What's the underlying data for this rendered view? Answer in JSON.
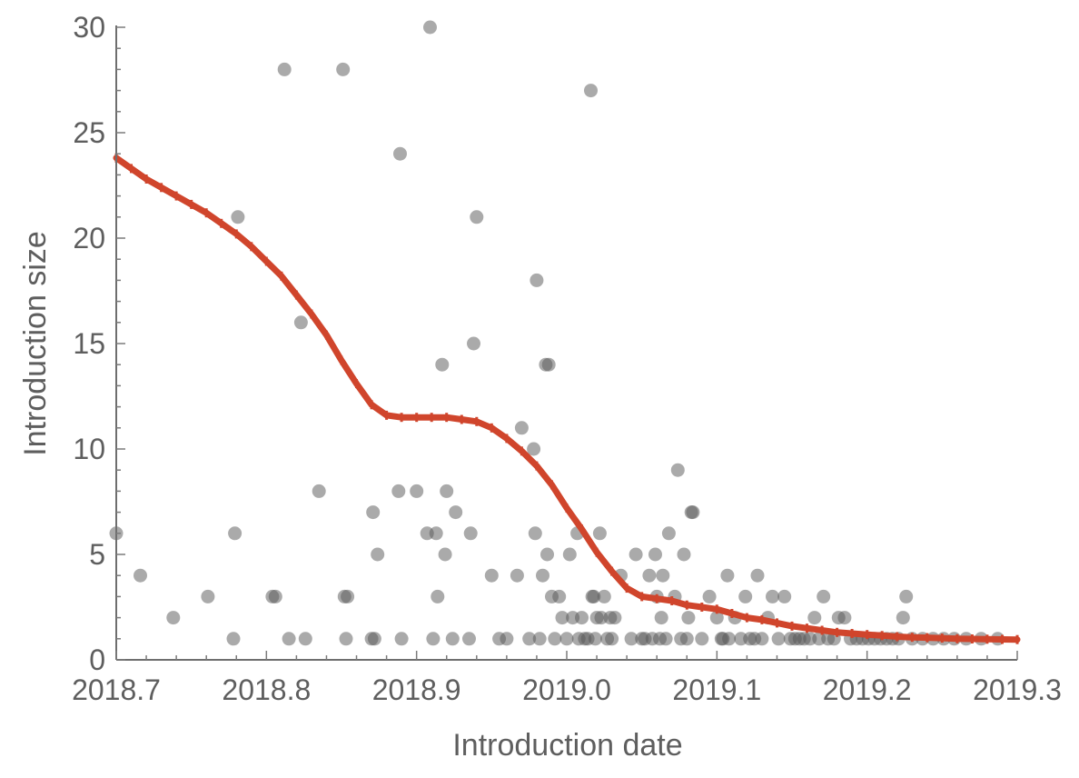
{
  "chart_data": {
    "type": "scatter",
    "xlabel": "Introduction date",
    "ylabel": "Introduction size",
    "xlim": [
      2018.7,
      2019.3
    ],
    "ylim": [
      0,
      30
    ],
    "x_ticks": [
      2018.7,
      2018.8,
      2018.9,
      2019.0,
      2019.1,
      2019.2,
      2019.3
    ],
    "x_tick_labels": [
      "2018.7",
      "2018.8",
      "2018.9",
      "2019.0",
      "2019.1",
      "2019.2",
      "2019.3"
    ],
    "y_ticks": [
      0,
      5,
      10,
      15,
      20,
      25,
      30
    ],
    "y_tick_labels": [
      "0",
      "5",
      "10",
      "15",
      "20",
      "25",
      "30"
    ],
    "grid": false,
    "colors": {
      "points": "#555555",
      "fit": "#d0452c"
    },
    "series": [
      {
        "type": "scatter",
        "x": [
          2018.7,
          2018.716,
          2018.738,
          2018.761,
          2018.779,
          2018.778,
          2018.781,
          2018.804,
          2018.806,
          2018.812,
          2018.815,
          2018.823,
          2018.826,
          2018.835,
          2018.851,
          2018.852,
          2018.854,
          2018.853,
          2018.87,
          2018.871,
          2018.872,
          2018.874,
          2018.888,
          2018.89,
          2018.889,
          2018.9,
          2018.907,
          2018.909,
          2018.911,
          2018.913,
          2018.914,
          2018.917,
          2018.919,
          2018.92,
          2018.924,
          2018.926,
          2018.935,
          2018.936,
          2018.94,
          2018.938,
          2018.95,
          2018.955,
          2018.96,
          2018.967,
          2018.97,
          2018.975,
          2018.978,
          2018.979,
          2018.98,
          2018.982,
          2018.984,
          2018.986,
          2018.987,
          2018.988,
          2018.99,
          2018.992,
          2018.995,
          2018.997,
          2019.0,
          2019.002,
          2019.004,
          2019.007,
          2019.008,
          2019.01,
          2019.012,
          2019.014,
          2019.016,
          2019.017,
          2019.018,
          2019.019,
          2019.02,
          2019.022,
          2019.023,
          2019.025,
          2019.027,
          2019.029,
          2019.03,
          2019.032,
          2019.036,
          2019.043,
          2019.046,
          2019.05,
          2019.052,
          2019.055,
          2019.057,
          2019.059,
          2019.06,
          2019.062,
          2019.063,
          2019.064,
          2019.066,
          2019.068,
          2019.072,
          2019.074,
          2019.076,
          2019.078,
          2019.08,
          2019.081,
          2019.083,
          2019.084,
          2019.09,
          2019.095,
          2019.1,
          2019.103,
          2019.104,
          2019.107,
          2019.108,
          2019.112,
          2019.116,
          2019.119,
          2019.122,
          2019.125,
          2019.127,
          2019.13,
          2019.134,
          2019.137,
          2019.141,
          2019.145,
          2019.149,
          2019.152,
          2019.155,
          2019.158,
          2019.162,
          2019.165,
          2019.168,
          2019.171,
          2019.174,
          2019.178,
          2019.181,
          2019.185,
          2019.189,
          2019.193,
          2019.197,
          2019.201,
          2019.205,
          2019.209,
          2019.213,
          2019.217,
          2019.221,
          2019.224,
          2019.226,
          2019.23,
          2019.237,
          2019.244,
          2019.251,
          2019.258,
          2019.266,
          2019.276,
          2019.287
        ],
        "y": [
          6,
          4,
          2,
          3,
          6,
          1,
          21,
          3,
          3,
          28,
          1,
          16,
          1,
          8,
          28,
          3,
          3,
          1,
          1,
          7,
          1,
          5,
          8,
          1,
          24,
          8,
          6,
          30,
          1,
          6,
          3,
          14,
          5,
          8,
          1,
          7,
          1,
          6,
          21,
          15,
          4,
          1,
          1,
          4,
          11,
          1,
          10,
          6,
          18,
          1,
          4,
          14,
          5,
          14,
          3,
          1,
          3,
          2,
          1,
          5,
          2,
          6,
          1,
          2,
          1,
          1,
          27,
          3,
          3,
          1,
          2,
          6,
          2,
          3,
          1,
          2,
          1,
          2,
          4,
          1,
          5,
          1,
          1,
          4,
          1,
          5,
          3,
          1,
          2,
          4,
          1,
          6,
          3,
          9,
          1,
          5,
          1,
          2,
          7,
          7,
          1,
          3,
          2,
          1,
          1,
          4,
          1,
          2,
          1,
          3,
          1,
          1,
          4,
          1,
          2,
          3,
          1,
          3,
          1,
          1,
          1,
          1,
          1,
          2,
          1,
          3,
          1,
          1,
          2,
          2,
          1,
          1,
          1,
          1,
          1,
          1,
          1,
          1,
          1,
          2,
          3,
          1,
          1,
          1,
          1,
          1,
          1,
          1,
          1
        ]
      },
      {
        "type": "line",
        "x": [
          2018.7,
          2018.71,
          2018.72,
          2018.73,
          2018.74,
          2018.75,
          2018.76,
          2018.77,
          2018.78,
          2018.79,
          2018.8,
          2018.81,
          2018.82,
          2018.83,
          2018.84,
          2018.85,
          2018.86,
          2018.87,
          2018.88,
          2018.89,
          2018.9,
          2018.91,
          2018.92,
          2018.93,
          2018.94,
          2018.95,
          2018.96,
          2018.97,
          2018.98,
          2018.99,
          2019.0,
          2019.01,
          2019.02,
          2019.03,
          2019.04,
          2019.05,
          2019.06,
          2019.07,
          2019.08,
          2019.09,
          2019.1,
          2019.11,
          2019.12,
          2019.13,
          2019.14,
          2019.15,
          2019.16,
          2019.17,
          2019.18,
          2019.19,
          2019.2,
          2019.21,
          2019.22,
          2019.23,
          2019.24,
          2019.25,
          2019.26,
          2019.27,
          2019.28,
          2019.29,
          2019.3
        ],
        "y": [
          23.8,
          23.3,
          22.8,
          22.4,
          22.0,
          21.6,
          21.2,
          20.7,
          20.2,
          19.6,
          18.9,
          18.2,
          17.3,
          16.4,
          15.4,
          14.2,
          13.1,
          12.1,
          11.6,
          11.5,
          11.5,
          11.5,
          11.5,
          11.4,
          11.3,
          11.0,
          10.5,
          9.9,
          9.2,
          8.3,
          7.2,
          6.2,
          5.1,
          4.2,
          3.4,
          3.0,
          2.9,
          2.8,
          2.6,
          2.5,
          2.4,
          2.2,
          2.0,
          1.9,
          1.75,
          1.6,
          1.5,
          1.4,
          1.3,
          1.25,
          1.2,
          1.15,
          1.1,
          1.07,
          1.05,
          1.03,
          1.0,
          0.99,
          0.98,
          0.97,
          0.96
        ]
      }
    ]
  }
}
